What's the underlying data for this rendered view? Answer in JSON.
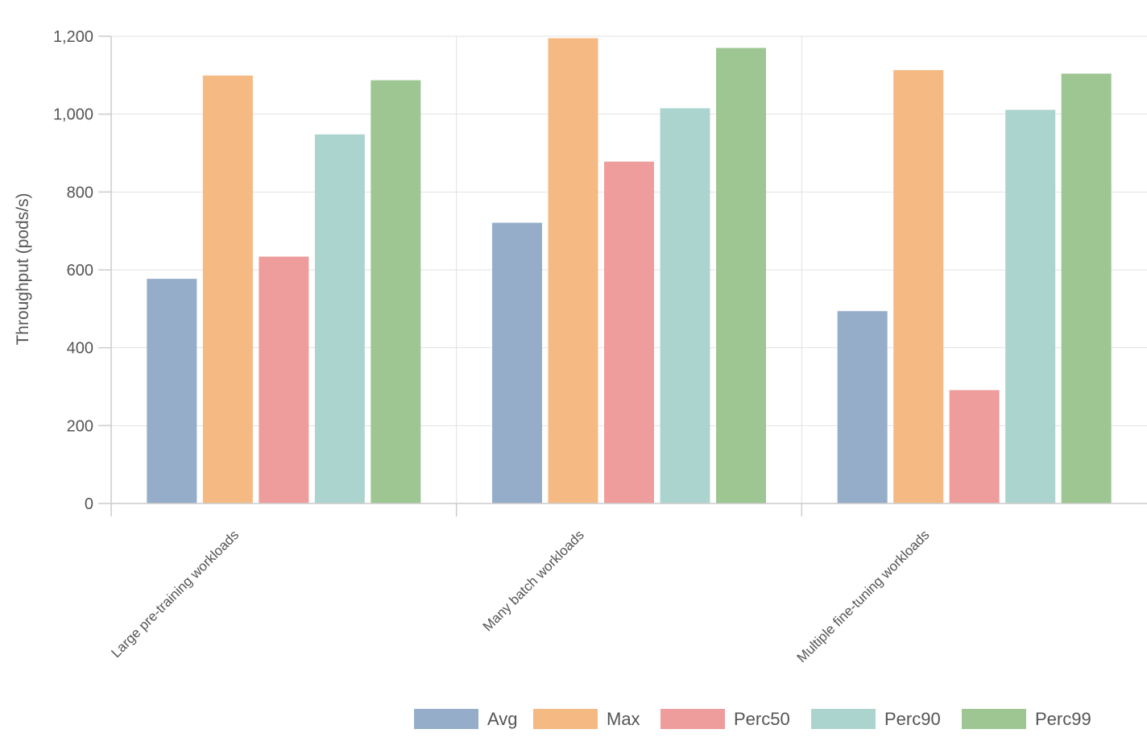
{
  "chart_data": {
    "type": "bar",
    "title": "",
    "xlabel": "",
    "ylabel": "Throughput (pods/s)",
    "ylim": [
      0,
      1200
    ],
    "yticks": [
      0,
      200,
      400,
      600,
      800,
      1000,
      1200
    ],
    "ytick_labels": [
      "0",
      "200",
      "400",
      "600",
      "800",
      "1,000",
      "1,200"
    ],
    "categories": [
      "Large pre-training workloads",
      "Many batch workloads",
      "Multiple fine-tuning workloads"
    ],
    "series": [
      {
        "name": "Avg",
        "color": "#95adc9",
        "values": [
          577,
          721,
          494
        ]
      },
      {
        "name": "Max",
        "color": "#f5b984",
        "values": [
          1099,
          1195,
          1113
        ]
      },
      {
        "name": "Perc50",
        "color": "#ee9c9c",
        "values": [
          634,
          878,
          291
        ]
      },
      {
        "name": "Perc90",
        "color": "#acd4cf",
        "values": [
          948,
          1015,
          1011
        ]
      },
      {
        "name": "Perc99",
        "color": "#9dc692",
        "values": [
          1087,
          1170,
          1104
        ]
      }
    ],
    "grid": true,
    "legend_position": "bottom-right"
  }
}
